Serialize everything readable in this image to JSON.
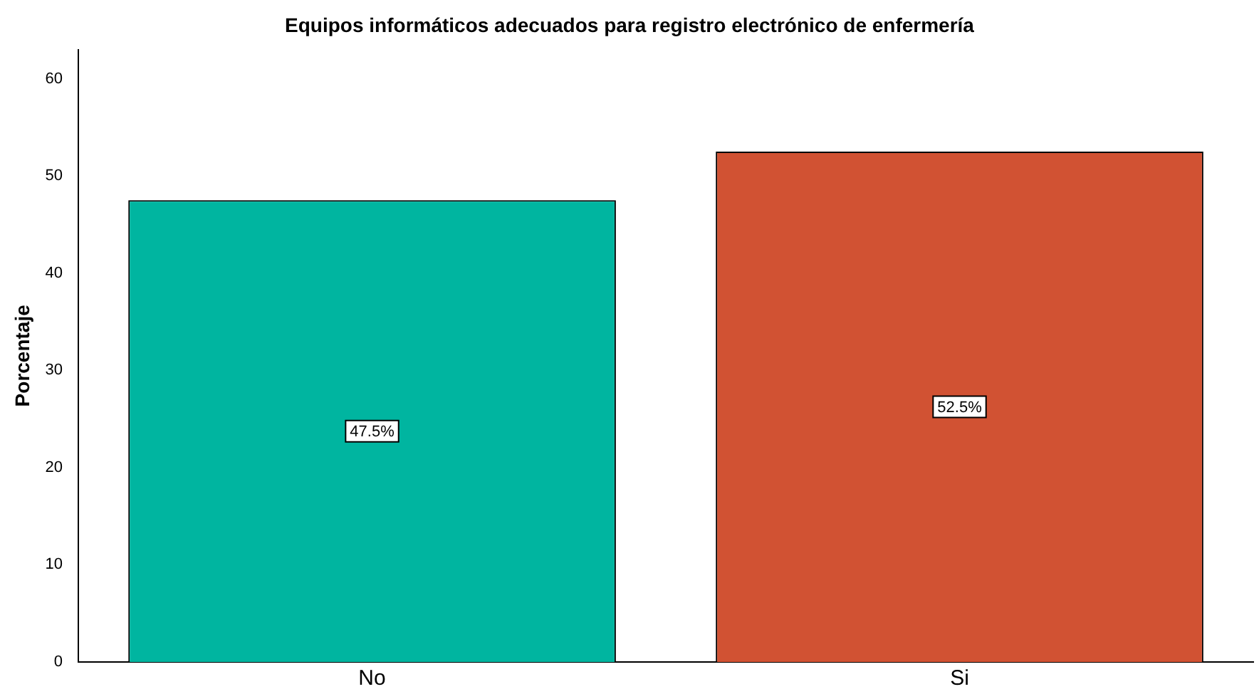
{
  "chart_data": {
    "type": "bar",
    "title": "Equipos informáticos adecuados para registro electrónico de enfermería",
    "ylabel": "Porcentaje",
    "categories": [
      "No",
      "Si"
    ],
    "values": [
      47.5,
      52.5
    ],
    "colors": [
      "#00b5a0",
      "#d15233"
    ],
    "value_labels": [
      "47.5%",
      "52.5%"
    ],
    "ylim": [
      0,
      63
    ],
    "yticks": [
      0,
      10,
      20,
      30,
      40,
      50,
      60
    ],
    "grid": false,
    "legend": false
  }
}
